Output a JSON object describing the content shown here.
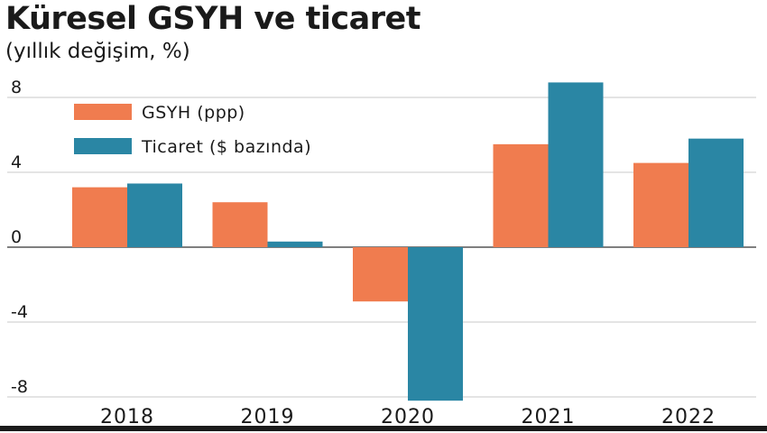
{
  "chart_data": {
    "type": "bar",
    "title": "Küresel GSYH ve ticaret",
    "subtitle": "(yıllık değişim, %)",
    "categories": [
      "2018",
      "2019",
      "2020",
      "2021",
      "2022"
    ],
    "series": [
      {
        "name": "GSYH (ppp)",
        "color": "#f07c4f",
        "values": [
          3.2,
          2.4,
          -2.9,
          5.5,
          4.5
        ]
      },
      {
        "name": "Ticaret ($ bazında)",
        "color": "#2a86a4",
        "values": [
          3.4,
          0.3,
          -8.2,
          8.8,
          5.8
        ]
      }
    ],
    "ylim": [
      -8,
      8
    ],
    "yticks": [
      "8",
      "4",
      "0",
      "-4",
      "-8"
    ],
    "xlabel": "",
    "ylabel": "",
    "grid": true,
    "legend_position": "top-left"
  }
}
